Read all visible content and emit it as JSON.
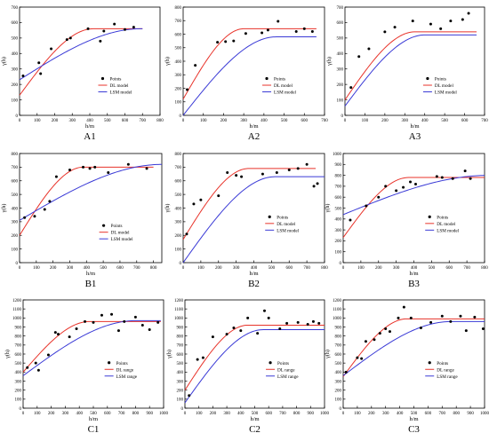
{
  "colors": {
    "dl": "#e8332a",
    "lsm": "#3a3ad6",
    "points": "#000000",
    "axis": "#000000"
  },
  "chart_data": [
    {
      "id": "A1",
      "type": "scatter",
      "caption": "A1",
      "xlabel": "h/m",
      "ylabel": "γ(h)",
      "xlim": [
        0,
        800
      ],
      "ylim": [
        0,
        700
      ],
      "xticks": [
        0,
        100,
        200,
        300,
        400,
        500,
        600,
        700,
        800
      ],
      "yticks": [
        0,
        100,
        200,
        300,
        400,
        500,
        600,
        700
      ],
      "legend_position": "right",
      "legend": [
        "Points",
        "DL model",
        "LSM model"
      ],
      "points": [
        [
          20,
          255
        ],
        [
          110,
          340
        ],
        [
          120,
          270
        ],
        [
          180,
          430
        ],
        [
          270,
          490
        ],
        [
          290,
          500
        ],
        [
          390,
          560
        ],
        [
          460,
          480
        ],
        [
          480,
          545
        ],
        [
          540,
          590
        ],
        [
          600,
          555
        ],
        [
          650,
          570
        ]
      ],
      "series": [
        {
          "name": "DL model",
          "role": "dl",
          "nugget": 130,
          "sill": 560,
          "range": 420,
          "xmax": 700
        },
        {
          "name": "LSM model",
          "role": "lsm",
          "nugget": 230,
          "sill": 560,
          "range": 690,
          "xmax": 700
        }
      ]
    },
    {
      "id": "A2",
      "type": "scatter",
      "caption": "A2",
      "xlabel": "h/m",
      "ylabel": "γ(h)",
      "xlim": [
        0,
        700
      ],
      "ylim": [
        0,
        800
      ],
      "xticks": [
        0,
        100,
        200,
        300,
        400,
        500,
        600,
        700
      ],
      "yticks": [
        0,
        100,
        200,
        300,
        400,
        500,
        600,
        700,
        800
      ],
      "legend_position": "right",
      "legend": [
        "Points",
        "DL model",
        "LSM model"
      ],
      "points": [
        [
          20,
          190
        ],
        [
          60,
          370
        ],
        [
          170,
          540
        ],
        [
          210,
          545
        ],
        [
          250,
          550
        ],
        [
          310,
          605
        ],
        [
          390,
          610
        ],
        [
          420,
          630
        ],
        [
          470,
          695
        ],
        [
          560,
          620
        ],
        [
          600,
          640
        ],
        [
          640,
          620
        ]
      ],
      "series": [
        {
          "name": "DL model",
          "role": "dl",
          "nugget": 120,
          "sill": 640,
          "range": 300,
          "xmax": 660
        },
        {
          "name": "LSM model",
          "role": "lsm",
          "nugget": 0,
          "sill": 580,
          "range": 460,
          "xmax": 660
        }
      ]
    },
    {
      "id": "A3",
      "type": "scatter",
      "caption": "A3",
      "xlabel": "h/m",
      "ylabel": "γ(h)",
      "xlim": [
        0,
        700
      ],
      "ylim": [
        0,
        700
      ],
      "xticks": [
        0,
        100,
        200,
        300,
        400,
        500,
        600,
        700
      ],
      "yticks": [
        0,
        100,
        200,
        300,
        400,
        500,
        600,
        700
      ],
      "legend_position": "right",
      "legend": [
        "Points",
        "DL model",
        "LSM model"
      ],
      "points": [
        [
          30,
          180
        ],
        [
          70,
          380
        ],
        [
          120,
          430
        ],
        [
          200,
          540
        ],
        [
          250,
          570
        ],
        [
          340,
          610
        ],
        [
          430,
          590
        ],
        [
          480,
          560
        ],
        [
          530,
          610
        ],
        [
          590,
          620
        ],
        [
          620,
          660
        ]
      ],
      "series": [
        {
          "name": "DL model",
          "role": "dl",
          "nugget": 100,
          "sill": 540,
          "range": 350,
          "xmax": 660
        },
        {
          "name": "LSM model",
          "role": "lsm",
          "nugget": 60,
          "sill": 520,
          "range": 400,
          "xmax": 660
        }
      ]
    },
    {
      "id": "B1",
      "type": "scatter",
      "caption": "B1",
      "xlabel": "h/m",
      "ylabel": "γ(h)",
      "xlim": [
        0,
        850
      ],
      "ylim": [
        0,
        800
      ],
      "xticks": [
        0,
        100,
        200,
        300,
        400,
        500,
        600,
        700,
        800
      ],
      "yticks": [
        0,
        100,
        200,
        300,
        400,
        500,
        600,
        700,
        800
      ],
      "legend_position": "right",
      "legend": [
        "Points",
        "DL model",
        "LSM model"
      ],
      "points": [
        [
          30,
          330
        ],
        [
          90,
          340
        ],
        [
          150,
          390
        ],
        [
          180,
          450
        ],
        [
          220,
          630
        ],
        [
          300,
          680
        ],
        [
          380,
          700
        ],
        [
          420,
          690
        ],
        [
          450,
          700
        ],
        [
          530,
          660
        ],
        [
          650,
          720
        ],
        [
          760,
          690
        ]
      ],
      "series": [
        {
          "name": "DL model",
          "role": "dl",
          "nugget": 200,
          "sill": 700,
          "range": 380,
          "xmax": 800
        },
        {
          "name": "LSM model",
          "role": "lsm",
          "nugget": 310,
          "sill": 720,
          "range": 850,
          "xmax": 850
        }
      ]
    },
    {
      "id": "B2",
      "type": "scatter",
      "caption": "B2",
      "xlabel": "h/m",
      "ylabel": "γ(h)",
      "xlim": [
        0,
        800
      ],
      "ylim": [
        0,
        800
      ],
      "xticks": [
        0,
        100,
        200,
        300,
        400,
        500,
        600,
        700,
        800
      ],
      "yticks": [
        0,
        100,
        200,
        300,
        400,
        500,
        600,
        700,
        800
      ],
      "legend_position": "bottom-right",
      "legend": [
        "Points",
        "DL model",
        "LSM model"
      ],
      "points": [
        [
          20,
          210
        ],
        [
          60,
          430
        ],
        [
          100,
          460
        ],
        [
          200,
          490
        ],
        [
          250,
          660
        ],
        [
          300,
          640
        ],
        [
          330,
          630
        ],
        [
          450,
          650
        ],
        [
          530,
          660
        ],
        [
          600,
          680
        ],
        [
          650,
          690
        ],
        [
          700,
          720
        ],
        [
          740,
          560
        ],
        [
          760,
          580
        ]
      ],
      "series": [
        {
          "name": "DL model",
          "role": "dl",
          "nugget": 170,
          "sill": 690,
          "range": 370,
          "xmax": 750
        },
        {
          "name": "LSM model",
          "role": "lsm",
          "nugget": 0,
          "sill": 630,
          "range": 520,
          "xmax": 800
        }
      ]
    },
    {
      "id": "B3",
      "type": "scatter",
      "caption": "B3",
      "xlabel": "h/m",
      "ylabel": "γ(h)",
      "xlim": [
        0,
        800
      ],
      "ylim": [
        0,
        1000
      ],
      "xticks": [
        0,
        100,
        200,
        300,
        400,
        500,
        600,
        700,
        800
      ],
      "yticks": [
        0,
        100,
        200,
        300,
        400,
        500,
        600,
        700,
        800,
        900,
        1000
      ],
      "legend_position": "bottom-right",
      "legend": [
        "Points",
        "DL model",
        "LSM model"
      ],
      "points": [
        [
          40,
          390
        ],
        [
          130,
          520
        ],
        [
          200,
          600
        ],
        [
          240,
          700
        ],
        [
          300,
          660
        ],
        [
          340,
          690
        ],
        [
          380,
          740
        ],
        [
          410,
          720
        ],
        [
          530,
          790
        ],
        [
          560,
          780
        ],
        [
          620,
          770
        ],
        [
          690,
          840
        ],
        [
          720,
          770
        ]
      ],
      "series": [
        {
          "name": "DL model",
          "role": "dl",
          "nugget": 230,
          "sill": 780,
          "range": 370,
          "xmax": 800
        },
        {
          "name": "LSM model",
          "role": "lsm",
          "nugget": 440,
          "sill": 800,
          "range": 820,
          "xmax": 800
        }
      ]
    },
    {
      "id": "C1",
      "type": "scatter",
      "caption": "C1",
      "xlabel": "h/m",
      "ylabel": "γ(h)",
      "xlim": [
        0,
        1000
      ],
      "ylim": [
        0,
        1200
      ],
      "xticks": [
        0,
        100,
        200,
        300,
        400,
        500,
        600,
        700,
        800,
        900,
        1000
      ],
      "yticks": [
        0,
        100,
        200,
        300,
        400,
        500,
        600,
        700,
        800,
        900,
        1000,
        1100,
        1200
      ],
      "legend_position": "bottom-right",
      "legend": [
        "Points",
        "DL range",
        "LSM range"
      ],
      "points": [
        [
          30,
          450
        ],
        [
          90,
          500
        ],
        [
          110,
          420
        ],
        [
          180,
          590
        ],
        [
          230,
          840
        ],
        [
          250,
          820
        ],
        [
          330,
          790
        ],
        [
          380,
          880
        ],
        [
          440,
          960
        ],
        [
          500,
          950
        ],
        [
          560,
          1030
        ],
        [
          630,
          1040
        ],
        [
          680,
          860
        ],
        [
          720,
          960
        ],
        [
          800,
          1010
        ],
        [
          850,
          920
        ],
        [
          900,
          870
        ],
        [
          960,
          950
        ]
      ],
      "series": [
        {
          "name": "DL range",
          "role": "dl",
          "nugget": 400,
          "sill": 960,
          "range": 470,
          "xmax": 980
        },
        {
          "name": "LSM range",
          "role": "lsm",
          "nugget": 360,
          "sill": 970,
          "range": 800,
          "xmax": 980
        }
      ]
    },
    {
      "id": "C2",
      "type": "scatter",
      "caption": "C2",
      "xlabel": "h/m",
      "ylabel": "γ(h)",
      "xlim": [
        0,
        1000
      ],
      "ylim": [
        0,
        1200
      ],
      "xticks": [
        0,
        100,
        200,
        300,
        400,
        500,
        600,
        700,
        800,
        900,
        1000
      ],
      "yticks": [
        0,
        100,
        200,
        300,
        400,
        500,
        600,
        700,
        800,
        900,
        1000,
        1100,
        1200
      ],
      "legend_position": "bottom-right",
      "legend": [
        "Points",
        "DL range",
        "LSM range"
      ],
      "points": [
        [
          30,
          140
        ],
        [
          90,
          540
        ],
        [
          130,
          560
        ],
        [
          200,
          790
        ],
        [
          300,
          820
        ],
        [
          350,
          890
        ],
        [
          400,
          860
        ],
        [
          450,
          1000
        ],
        [
          520,
          830
        ],
        [
          570,
          1080
        ],
        [
          600,
          1000
        ],
        [
          680,
          880
        ],
        [
          730,
          940
        ],
        [
          810,
          950
        ],
        [
          880,
          930
        ],
        [
          920,
          960
        ],
        [
          960,
          940
        ]
      ],
      "series": [
        {
          "name": "DL range",
          "role": "dl",
          "nugget": 200,
          "sill": 920,
          "range": 450,
          "xmax": 1000
        },
        {
          "name": "LSM range",
          "role": "lsm",
          "nugget": 60,
          "sill": 870,
          "range": 560,
          "xmax": 1000
        }
      ]
    },
    {
      "id": "C3",
      "type": "scatter",
      "caption": "C3",
      "xlabel": "h/m",
      "ylabel": "γ(h)",
      "xlim": [
        0,
        1000
      ],
      "ylim": [
        0,
        1200
      ],
      "xticks": [
        0,
        100,
        200,
        300,
        400,
        500,
        600,
        700,
        800,
        900,
        1000
      ],
      "yticks": [
        0,
        100,
        200,
        300,
        400,
        500,
        600,
        700,
        800,
        900,
        1000,
        1100,
        1200
      ],
      "legend_position": "bottom-right",
      "legend": [
        "Points",
        "DL range",
        "LSM range"
      ],
      "points": [
        [
          20,
          400
        ],
        [
          100,
          560
        ],
        [
          130,
          550
        ],
        [
          160,
          740
        ],
        [
          220,
          760
        ],
        [
          260,
          830
        ],
        [
          300,
          880
        ],
        [
          330,
          850
        ],
        [
          390,
          1000
        ],
        [
          430,
          1120
        ],
        [
          480,
          1000
        ],
        [
          550,
          890
        ],
        [
          620,
          950
        ],
        [
          700,
          1020
        ],
        [
          760,
          960
        ],
        [
          830,
          1020
        ],
        [
          870,
          860
        ],
        [
          930,
          1010
        ],
        [
          990,
          880
        ]
      ],
      "series": [
        {
          "name": "DL range",
          "role": "dl",
          "nugget": 350,
          "sill": 990,
          "range": 450,
          "xmax": 1000
        },
        {
          "name": "LSM range",
          "role": "lsm",
          "nugget": 360,
          "sill": 960,
          "range": 760,
          "xmax": 1000
        }
      ]
    }
  ]
}
